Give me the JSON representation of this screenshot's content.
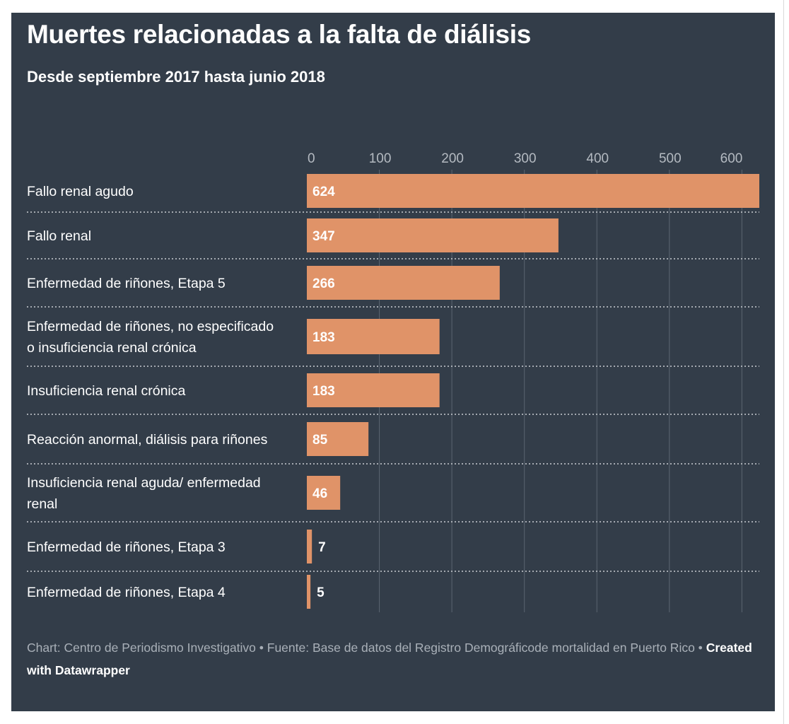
{
  "title": "Muertes relacionadas a la falta de diálisis",
  "subtitle": "Desde septiembre 2017 hasta junio 2018",
  "colors": {
    "background": "#333d49",
    "bar": "#e09368",
    "text": "#ffffff",
    "tick": "#b4bac1",
    "grid": "#5b6571",
    "footer": "#a9b0b8"
  },
  "chart_data": {
    "type": "bar",
    "orientation": "horizontal",
    "categories": [
      "Fallo renal agudo",
      "Fallo renal",
      "Enfermedad de riñones, Etapa 5",
      "Enfermedad de riñones, no especificado o insuficiencia renal crónica",
      "Insuficiencia renal crónica",
      "Reacción anormal, diálisis para riñones",
      "Insuficiencia renal aguda/ enfermedad renal",
      "Enfermedad de riñones, Etapa 3",
      "Enfermedad de riñones, Etapa 4"
    ],
    "category_lines": [
      [
        "Fallo renal agudo"
      ],
      [
        "Fallo renal"
      ],
      [
        "Enfermedad de riñones, Etapa 5"
      ],
      [
        "Enfermedad de riñones, no especificado",
        "o insuficiencia renal crónica"
      ],
      [
        "Insuficiencia renal crónica"
      ],
      [
        "Reacción anormal, diálisis para riñones"
      ],
      [
        "Insuficiencia renal aguda/ enfermedad",
        "renal"
      ],
      [
        "Enfermedad de riñones, Etapa 3"
      ],
      [
        "Enfermedad de riñones, Etapa 4"
      ]
    ],
    "values": [
      624,
      347,
      266,
      183,
      183,
      85,
      46,
      7,
      5
    ],
    "xticks": [
      0,
      100,
      200,
      300,
      400,
      500,
      600
    ],
    "xlim": [
      0,
      624
    ],
    "axis_position": "top",
    "grid": true,
    "value_labels": true
  },
  "footer": {
    "prefix": "Chart: Centro de Periodismo Investigativo • Fuente: Base de datos del Registro Demográficode mortalidad en Puerto Rico •",
    "credit": "Created with Datawrapper"
  }
}
